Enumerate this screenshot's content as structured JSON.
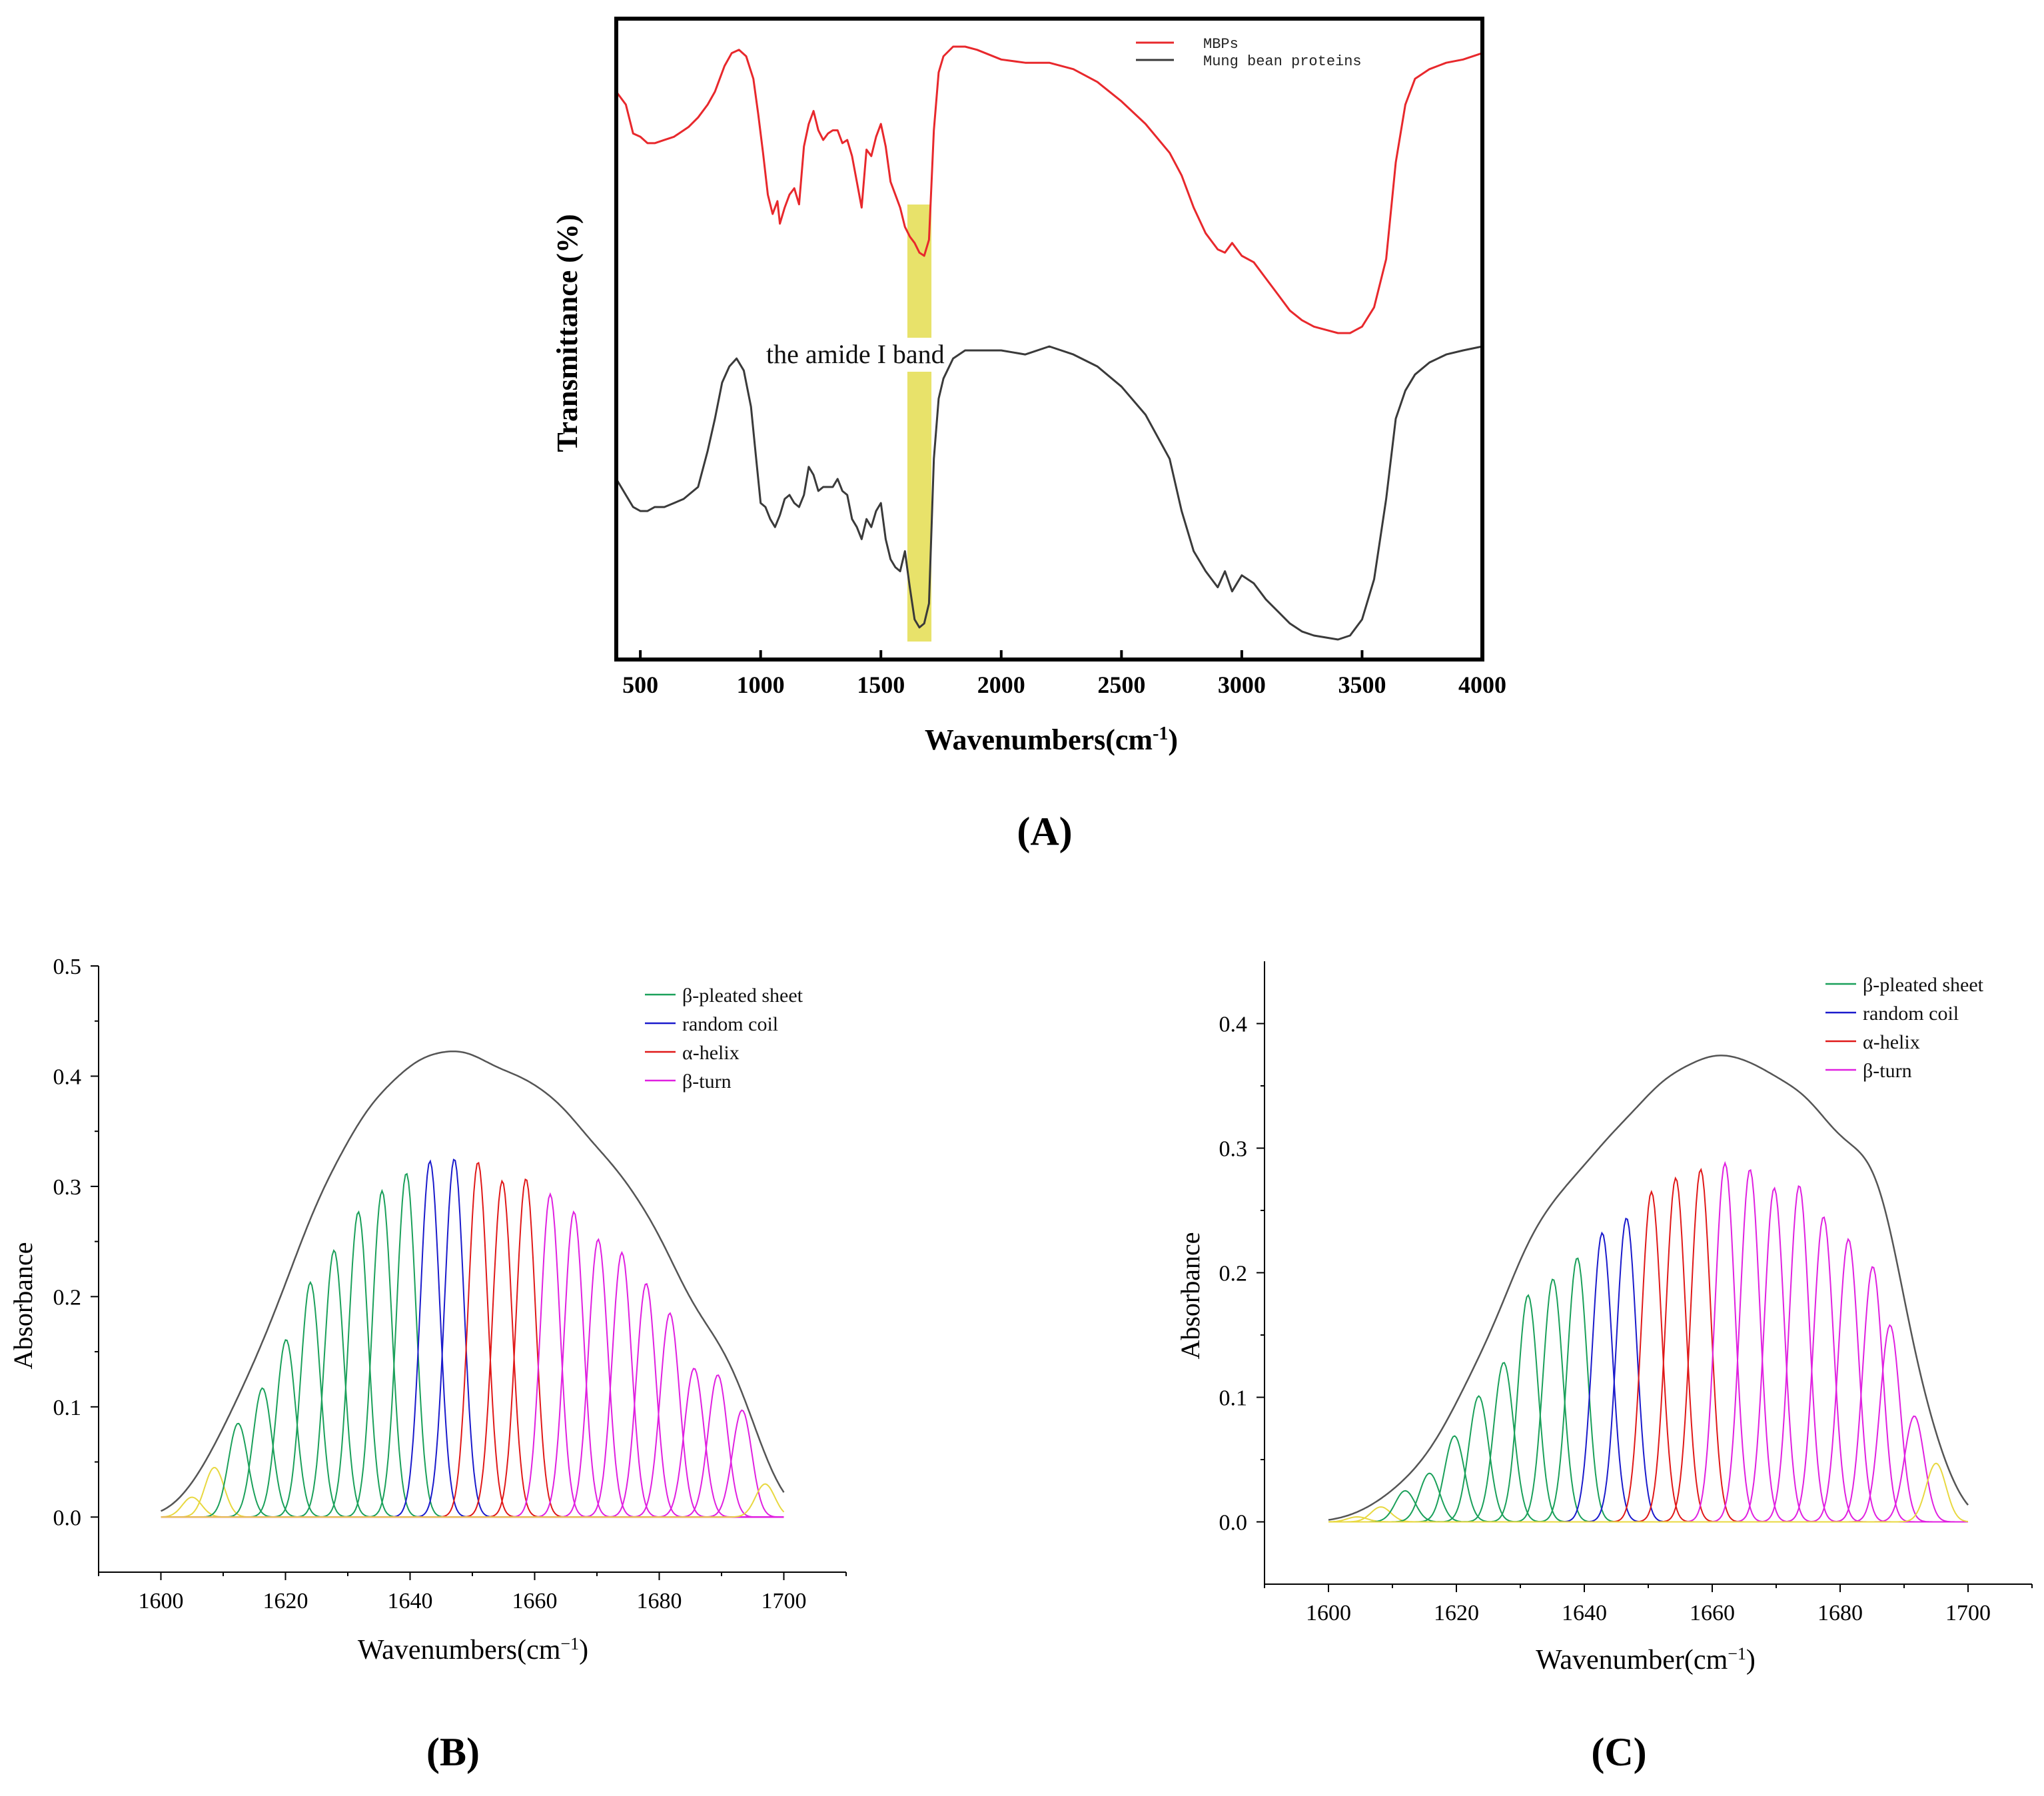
{
  "chart_data": [
    {
      "id": "A",
      "type": "line",
      "panel_label": "(A)",
      "xlabel": "Wavenumbers(cm",
      "xlabel_sup": "-1",
      "xlabel_tail": ")",
      "ylabel": "Transmittance (%)",
      "xlim": [
        400,
        4000
      ],
      "xticks": [
        500,
        1000,
        1500,
        2000,
        2500,
        3000,
        3500,
        4000
      ],
      "annotation": "the amide I band",
      "highlight_range": [
        1610,
        1710
      ],
      "highlight_color": "#e8e26a",
      "legend": [
        {
          "name": "MBPs",
          "color": "#e8282c"
        },
        {
          "name": "Mung bean proteins",
          "color": "#3a3a3a"
        }
      ],
      "series": [
        {
          "name": "MBPs",
          "color": "#e8282c",
          "x": [
            400,
            440,
            470,
            500,
            530,
            560,
            600,
            640,
            680,
            700,
            740,
            780,
            810,
            850,
            880,
            910,
            940,
            970,
            990,
            1010,
            1030,
            1050,
            1070,
            1080,
            1100,
            1120,
            1140,
            1160,
            1180,
            1200,
            1220,
            1240,
            1260,
            1280,
            1300,
            1320,
            1340,
            1360,
            1380,
            1400,
            1420,
            1440,
            1460,
            1480,
            1500,
            1520,
            1540,
            1560,
            1580,
            1600,
            1620,
            1640,
            1660,
            1680,
            1700,
            1720,
            1740,
            1760,
            1800,
            1850,
            1900,
            2000,
            2100,
            2200,
            2300,
            2400,
            2500,
            2600,
            2700,
            2750,
            2800,
            2850,
            2900,
            2930,
            2960,
            3000,
            3050,
            3100,
            3150,
            3200,
            3250,
            3300,
            3350,
            3400,
            3450,
            3500,
            3550,
            3600,
            3640,
            3680,
            3720,
            3780,
            3850,
            3920,
            4000
          ],
          "y": [
            92,
            88,
            79,
            78,
            76,
            76,
            77,
            78,
            80,
            81,
            84,
            88,
            92,
            100,
            104,
            105,
            103,
            96,
            85,
            73,
            60,
            54,
            58,
            51,
            56,
            60,
            62,
            57,
            75,
            82,
            86,
            80,
            77,
            79,
            80,
            80,
            76,
            77,
            72,
            64,
            56,
            74,
            72,
            78,
            82,
            75,
            64,
            60,
            56,
            50,
            47,
            45,
            42,
            41,
            46,
            80,
            98,
            103,
            106,
            106,
            105,
            102,
            101,
            101,
            99,
            95,
            89,
            82,
            73,
            66,
            56,
            48,
            43,
            42,
            45,
            41,
            39,
            34,
            29,
            24,
            21,
            19,
            18,
            17,
            17,
            19,
            25,
            40,
            70,
            88,
            96,
            99,
            101,
            102,
            104
          ]
        },
        {
          "name": "Mung bean proteins",
          "color": "#3a3a3a",
          "x": [
            400,
            440,
            470,
            500,
            530,
            560,
            600,
            640,
            680,
            700,
            740,
            780,
            810,
            840,
            870,
            900,
            930,
            960,
            980,
            1000,
            1020,
            1040,
            1060,
            1080,
            1100,
            1120,
            1140,
            1160,
            1180,
            1200,
            1220,
            1240,
            1260,
            1280,
            1300,
            1320,
            1340,
            1360,
            1380,
            1400,
            1420,
            1440,
            1460,
            1480,
            1500,
            1520,
            1540,
            1560,
            1580,
            1600,
            1620,
            1640,
            1660,
            1680,
            1700,
            1720,
            1740,
            1760,
            1800,
            1850,
            1900,
            2000,
            2100,
            2200,
            2300,
            2400,
            2500,
            2600,
            2700,
            2750,
            2800,
            2850,
            2900,
            2930,
            2960,
            3000,
            3050,
            3100,
            3150,
            3200,
            3250,
            3300,
            3350,
            3400,
            3450,
            3500,
            3550,
            3600,
            3640,
            3680,
            3720,
            3780,
            3850,
            3920,
            4000
          ],
          "y": [
            40,
            36,
            33,
            32,
            32,
            33,
            33,
            34,
            35,
            36,
            38,
            47,
            55,
            64,
            68,
            70,
            67,
            58,
            46,
            34,
            33,
            30,
            28,
            31,
            35,
            36,
            34,
            33,
            36,
            43,
            41,
            37,
            38,
            38,
            38,
            40,
            37,
            36,
            30,
            28,
            25,
            30,
            28,
            32,
            34,
            25,
            20,
            18,
            17,
            22,
            13,
            5,
            3,
            4,
            9,
            45,
            60,
            65,
            70,
            72,
            72,
            72,
            71,
            73,
            71,
            68,
            63,
            56,
            45,
            32,
            22,
            17,
            13,
            17,
            12,
            16,
            14,
            10,
            7,
            4,
            2,
            1,
            0.5,
            0,
            1,
            5,
            15,
            35,
            55,
            62,
            66,
            69,
            71,
            72,
            73
          ]
        }
      ]
    },
    {
      "id": "B",
      "type": "line",
      "panel_label": "(B)",
      "title": "",
      "xlabel": "Wavenumbers(cm",
      "xlabel_sup": "−1",
      "xlabel_tail": ")",
      "ylabel": "Absorbance",
      "xlim": [
        1590,
        1710
      ],
      "ylim": [
        -0.05,
        0.5
      ],
      "xticks": [
        1600,
        1620,
        1640,
        1660,
        1680,
        1700
      ],
      "yticks": [
        0.0,
        0.1,
        0.2,
        0.3,
        0.4,
        0.5
      ],
      "ytick_labels": [
        "0.0",
        "0.1",
        "0.2",
        "0.3",
        "0.4",
        "0.5"
      ],
      "legend": [
        {
          "name": "β-pleated sheet",
          "color": "#1aa05a"
        },
        {
          "name": "random coil",
          "color": "#1a1acc"
        },
        {
          "name": "α-helix",
          "color": "#e01818"
        },
        {
          "name": "β-turn",
          "color": "#e020e0"
        }
      ],
      "envelope_color": "#555555",
      "peak_sigma": 1.55,
      "envelope_sigma": 3.6,
      "peaks": [
        {
          "center": 1605.0,
          "height": 0.018,
          "group": "other"
        },
        {
          "center": 1608.6,
          "height": 0.045,
          "group": "other"
        },
        {
          "center": 1612.4,
          "height": 0.085,
          "group": "sheet"
        },
        {
          "center": 1616.3,
          "height": 0.117,
          "group": "sheet"
        },
        {
          "center": 1620.1,
          "height": 0.161,
          "group": "sheet"
        },
        {
          "center": 1624.0,
          "height": 0.213,
          "group": "sheet"
        },
        {
          "center": 1627.8,
          "height": 0.242,
          "group": "sheet"
        },
        {
          "center": 1631.7,
          "height": 0.277,
          "group": "sheet"
        },
        {
          "center": 1635.5,
          "height": 0.296,
          "group": "sheet"
        },
        {
          "center": 1639.4,
          "height": 0.312,
          "group": "sheet"
        },
        {
          "center": 1643.2,
          "height": 0.323,
          "group": "coil"
        },
        {
          "center": 1647.1,
          "height": 0.325,
          "group": "coil"
        },
        {
          "center": 1650.9,
          "height": 0.322,
          "group": "helix"
        },
        {
          "center": 1654.8,
          "height": 0.305,
          "group": "helix"
        },
        {
          "center": 1658.6,
          "height": 0.307,
          "group": "helix"
        },
        {
          "center": 1662.5,
          "height": 0.293,
          "group": "turn"
        },
        {
          "center": 1666.3,
          "height": 0.277,
          "group": "turn"
        },
        {
          "center": 1670.2,
          "height": 0.252,
          "group": "turn"
        },
        {
          "center": 1674.0,
          "height": 0.24,
          "group": "turn"
        },
        {
          "center": 1677.9,
          "height": 0.212,
          "group": "turn"
        },
        {
          "center": 1681.7,
          "height": 0.185,
          "group": "turn"
        },
        {
          "center": 1685.6,
          "height": 0.135,
          "group": "turn"
        },
        {
          "center": 1689.4,
          "height": 0.129,
          "group": "turn"
        },
        {
          "center": 1693.3,
          "height": 0.097,
          "group": "turn"
        },
        {
          "center": 1697.0,
          "height": 0.03,
          "group": "other"
        }
      ]
    },
    {
      "id": "C",
      "type": "line",
      "panel_label": "(C)",
      "title": "",
      "xlabel": "Wavenumber(cm",
      "xlabel_sup": "−1",
      "xlabel_tail": ")",
      "ylabel": "Absorbance",
      "xlim": [
        1590,
        1710
      ],
      "ylim": [
        -0.05,
        0.45
      ],
      "xticks": [
        1600,
        1620,
        1640,
        1660,
        1680,
        1700
      ],
      "yticks": [
        0.0,
        0.1,
        0.2,
        0.3,
        0.4
      ],
      "ytick_labels": [
        "0.0",
        "0.1",
        "0.2",
        "0.3",
        "0.4"
      ],
      "legend": [
        {
          "name": "β-pleated sheet",
          "color": "#1aa05a"
        },
        {
          "name": "random coil",
          "color": "#1a1acc"
        },
        {
          "name": "α-helix",
          "color": "#e01818"
        },
        {
          "name": "β-turn",
          "color": "#e020e0"
        }
      ],
      "envelope_color": "#555555",
      "peak_sigma": 1.55,
      "envelope_sigma": 3.6,
      "peaks": [
        {
          "center": 1604.5,
          "height": 0.004,
          "group": "other"
        },
        {
          "center": 1608.2,
          "height": 0.012,
          "group": "other"
        },
        {
          "center": 1612.0,
          "height": 0.025,
          "group": "sheet"
        },
        {
          "center": 1615.8,
          "height": 0.039,
          "group": "sheet"
        },
        {
          "center": 1619.7,
          "height": 0.069,
          "group": "sheet"
        },
        {
          "center": 1623.5,
          "height": 0.101,
          "group": "sheet"
        },
        {
          "center": 1627.4,
          "height": 0.128,
          "group": "sheet"
        },
        {
          "center": 1631.2,
          "height": 0.182,
          "group": "sheet"
        },
        {
          "center": 1635.1,
          "height": 0.195,
          "group": "sheet"
        },
        {
          "center": 1638.9,
          "height": 0.212,
          "group": "sheet"
        },
        {
          "center": 1642.8,
          "height": 0.232,
          "group": "coil"
        },
        {
          "center": 1646.6,
          "height": 0.244,
          "group": "coil"
        },
        {
          "center": 1650.5,
          "height": 0.265,
          "group": "helix"
        },
        {
          "center": 1654.3,
          "height": 0.276,
          "group": "helix"
        },
        {
          "center": 1658.2,
          "height": 0.283,
          "group": "helix"
        },
        {
          "center": 1662.0,
          "height": 0.288,
          "group": "turn"
        },
        {
          "center": 1665.9,
          "height": 0.283,
          "group": "turn"
        },
        {
          "center": 1669.7,
          "height": 0.268,
          "group": "turn"
        },
        {
          "center": 1673.6,
          "height": 0.27,
          "group": "turn"
        },
        {
          "center": 1677.4,
          "height": 0.245,
          "group": "turn"
        },
        {
          "center": 1681.3,
          "height": 0.227,
          "group": "turn"
        },
        {
          "center": 1685.1,
          "height": 0.205,
          "group": "turn"
        },
        {
          "center": 1687.8,
          "height": 0.158,
          "group": "turn"
        },
        {
          "center": 1691.6,
          "height": 0.085,
          "group": "turn"
        },
        {
          "center": 1695.0,
          "height": 0.047,
          "group": "other"
        }
      ]
    }
  ],
  "group_colors": {
    "sheet": "#1aa05a",
    "coil": "#1a1acc",
    "helix": "#e01818",
    "turn": "#e020e0",
    "other": "#e8d840"
  }
}
